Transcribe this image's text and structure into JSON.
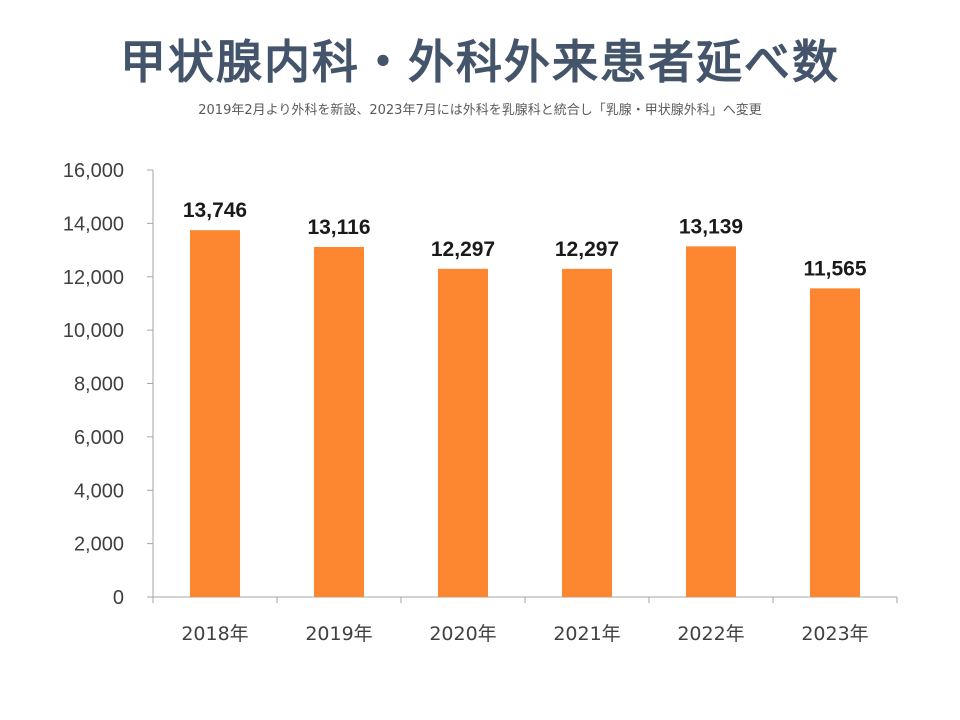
{
  "title": "甲状腺内科・外科外来患者延べ数",
  "subtitle": "2019年2月より外科を新設、2023年7月には外科を乳腺科と統合し「乳腺・甲状腺外科」へ変更",
  "colors": {
    "bar": "#fd8630",
    "axis": "#a6a6a6",
    "title": "#44546a"
  },
  "chart_data": {
    "type": "bar",
    "categories": [
      "2018年",
      "2019年",
      "2020年",
      "2021年",
      "2022年",
      "2023年"
    ],
    "values": [
      13746,
      13116,
      12297,
      12297,
      13139,
      11565
    ],
    "data_labels": [
      "13,746",
      "13,116",
      "12,297",
      "12,297",
      "13,139",
      "11,565"
    ],
    "yticks": [
      0,
      2000,
      4000,
      6000,
      8000,
      10000,
      12000,
      14000,
      16000
    ],
    "ytick_labels": [
      "0",
      "2,000",
      "4,000",
      "6,000",
      "8,000",
      "10,000",
      "12,000",
      "14,000",
      "16,000"
    ],
    "ylim": [
      0,
      16000
    ],
    "grid": false,
    "legend": "none"
  }
}
